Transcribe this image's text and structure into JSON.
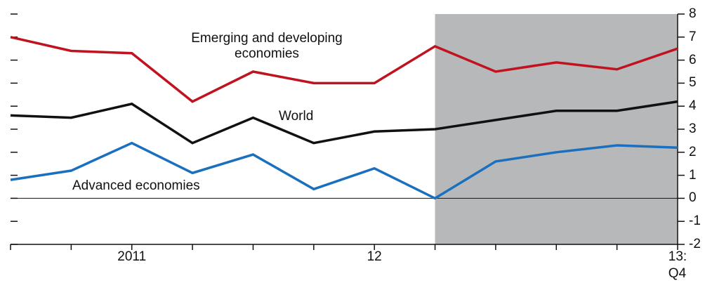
{
  "chart_data": {
    "type": "line",
    "categories": [
      null,
      null,
      "2011",
      null,
      null,
      null,
      "12",
      null,
      null,
      null,
      null,
      "13:\nQ4"
    ],
    "series": [
      {
        "name": "Emerging and developing economies",
        "color": "#c0121f",
        "values": [
          7.0,
          6.4,
          6.3,
          4.2,
          5.5,
          5.0,
          5.0,
          6.6,
          5.5,
          5.9,
          5.6,
          6.5
        ]
      },
      {
        "name": "World",
        "color": "#111111",
        "values": [
          3.6,
          3.5,
          4.1,
          2.4,
          3.5,
          2.4,
          2.9,
          3.0,
          3.4,
          3.8,
          3.8,
          4.2
        ]
      },
      {
        "name": "Advanced economies",
        "color": "#1a6fbf",
        "values": [
          0.8,
          1.2,
          2.4,
          1.1,
          1.9,
          0.4,
          1.3,
          0.0,
          1.6,
          2.0,
          2.3,
          2.2
        ]
      }
    ],
    "ylim": [
      -2,
      8
    ],
    "yticks": [
      -2,
      -1,
      0,
      1,
      2,
      3,
      4,
      5,
      6,
      7,
      8
    ],
    "shaded_from": 7,
    "shade_color": "#b7b8ba"
  }
}
